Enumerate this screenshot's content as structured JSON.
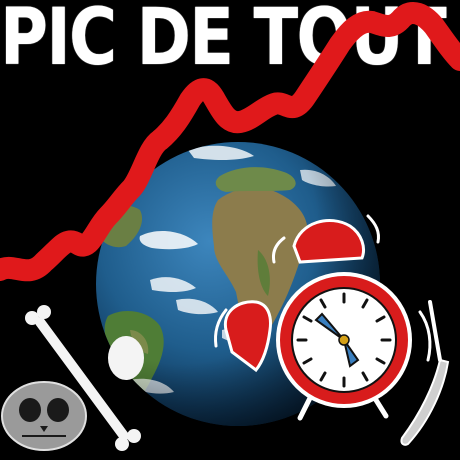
{
  "title": "PIC DE TOUT",
  "colors": {
    "background": "#000000",
    "title_text": "#ffffff",
    "trend_line": "#e0191b",
    "ocean": "#1f5d8c",
    "land": "#8a7a4a",
    "clock_red": "#d81c1c",
    "clock_face": "#ffffff"
  },
  "icons": {
    "globe": "earth-globe-icon",
    "trend": "rising-trend-line",
    "clock": "alarm-clock-icon",
    "bone": "bone-icon",
    "skull": "skull-icon",
    "blade": "blade-icon"
  }
}
